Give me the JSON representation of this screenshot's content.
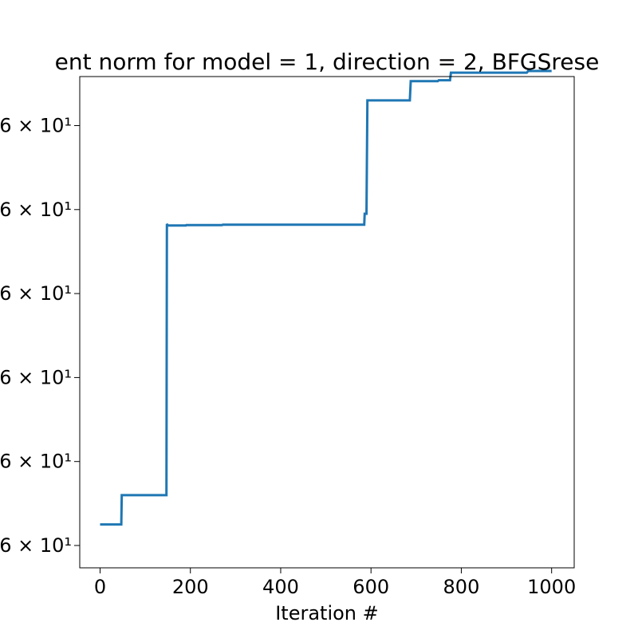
{
  "chart_data": {
    "type": "line",
    "title": "ent norm for model = 1, direction = 2, BFGSrese",
    "xlabel": "Iteration #",
    "ylabel": "",
    "xlim": [
      -45,
      1050
    ],
    "ylim": [
      0,
      6
    ],
    "x_ticks": [
      0,
      200,
      400,
      600,
      800,
      1000
    ],
    "y_ticks": [
      {
        "value": 0,
        "label": "6 × 10¹"
      },
      {
        "value": 1,
        "label": "6 × 10¹"
      },
      {
        "value": 2,
        "label": "6 × 10¹"
      },
      {
        "value": 3,
        "label": "6 × 10¹"
      },
      {
        "value": 4,
        "label": "6 × 10¹"
      },
      {
        "value": 5,
        "label": "6 × 10¹"
      }
    ],
    "grid": false,
    "line_color": "#1f77b4",
    "series": [
      {
        "x": [
          0,
          47,
          48,
          147,
          148,
          150,
          190,
          191,
          270,
          272,
          530,
          532,
          585,
          586,
          590,
          592,
          595,
          686,
          688,
          748,
          750,
          775,
          777,
          945,
          948,
          1000
        ],
        "y": [
          0.25,
          0.25,
          0.6,
          0.6,
          3.83,
          3.81,
          3.81,
          3.815,
          3.815,
          3.82,
          3.82,
          3.82,
          3.82,
          3.95,
          3.95,
          5.3,
          5.3,
          5.3,
          5.53,
          5.53,
          5.54,
          5.54,
          5.63,
          5.63,
          5.65,
          5.65
        ]
      }
    ]
  }
}
